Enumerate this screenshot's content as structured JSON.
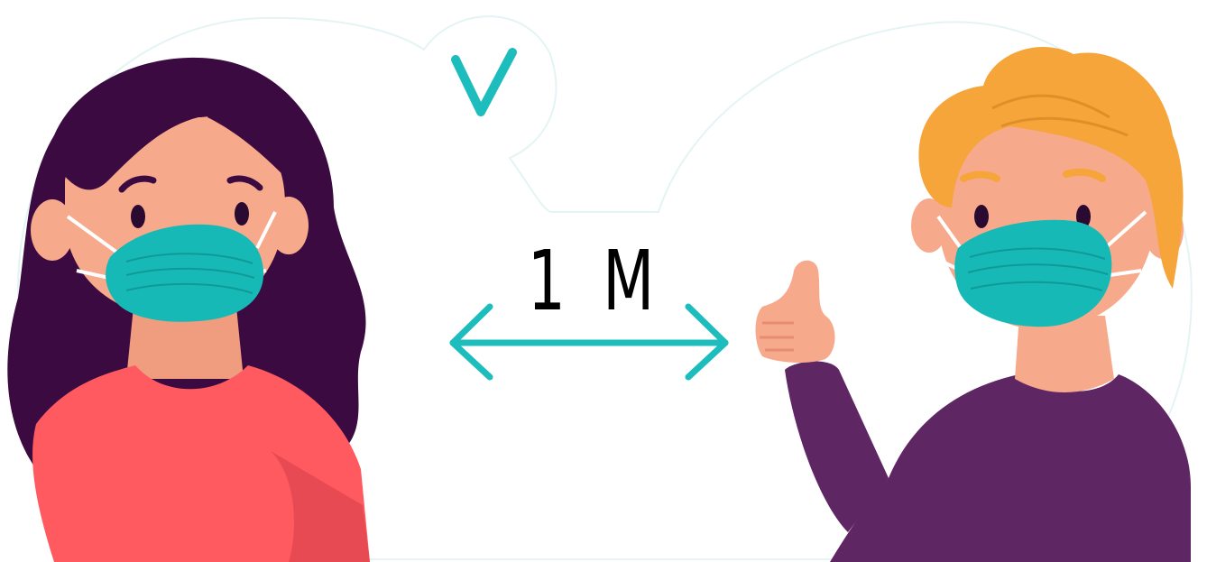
{
  "distance_label": "1 M",
  "colors": {
    "accent": "#1ebdbd",
    "mask": "#17b9b6",
    "skin": "#f7a98b",
    "woman_hair": "#3b0a40",
    "woman_shirt": "#ff5a5f",
    "man_hair": "#f6a53b",
    "man_shirt": "#5e2663",
    "backdrop_outline": "#e4f4f4"
  },
  "icons": [
    "check-icon",
    "double-arrow-icon",
    "thumbs-up-icon"
  ]
}
